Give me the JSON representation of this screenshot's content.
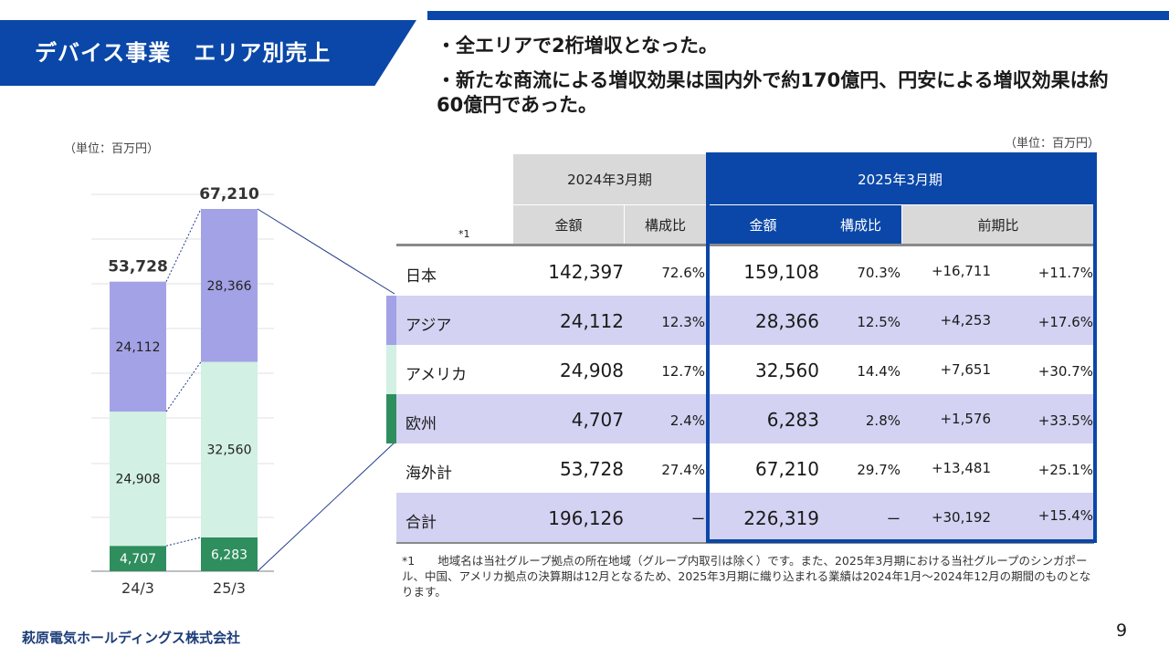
{
  "slide": {
    "title": "デバイス事業　エリア別売上",
    "bullets": [
      "・全エリアで2桁増収となった。",
      "・新たな商流による増収効果は国内外で約170億円、円安による増収効果は約",
      "60億円であった。"
    ],
    "unit_left": "（単位：百万円）",
    "unit_right": "（単位：百万円）",
    "footnote": "*1　　地域名は当社グループ拠点の所在地域（グループ内取引は除く）です。また、2025年3月期における当社グループのシンガポール、中国、アメリカ拠点の決算期は12月となるため、2025年3月期に織り込まれる業績は2024年1月～2024年12月の期間のものとなります。",
    "logo": "萩原電気ホールディングス株式会社",
    "page_number": "9"
  },
  "colors": {
    "brand_blue": "#0a47a8",
    "asia": "#a3a2e6",
    "america": "#d2f0e3",
    "europe": "#2f8e5e",
    "lavender_row": "#d3d2f2"
  },
  "chart_data": {
    "type": "bar",
    "stacked": true,
    "categories": [
      "24/3",
      "25/3"
    ],
    "series": [
      {
        "name": "欧州",
        "values": [
          4707,
          6283
        ]
      },
      {
        "name": "アメリカ",
        "values": [
          24908,
          32560
        ]
      },
      {
        "name": "アジア",
        "values": [
          24112,
          28366
        ]
      }
    ],
    "totals": [
      53728,
      67210
    ],
    "total_labels": [
      "53,728",
      "67,210"
    ],
    "value_labels": [
      [
        "4,707",
        "24,908",
        "24,112"
      ],
      [
        "6,283",
        "32,560",
        "28,366"
      ]
    ],
    "grid": true
  },
  "table": {
    "header_2024": "2024年3月期",
    "header_2025": "2025年3月期",
    "sub_amount_2024": "金額",
    "sub_ratio_2024": "構成比",
    "sub_amount_2025": "金額",
    "sub_ratio_2025": "構成比",
    "sub_yoy": "前期比",
    "note_mark": "*1",
    "rows": [
      {
        "name": "日本",
        "v2024": "142,397",
        "r2024": "72.6%",
        "v2025": "159,108",
        "r2025": "70.3%",
        "diff": "+16,711",
        "pct": "+11.7%"
      },
      {
        "name": "アジア",
        "v2024": "24,112",
        "r2024": "12.3%",
        "v2025": "28,366",
        "r2025": "12.5%",
        "diff": "+4,253",
        "pct": "+17.6%"
      },
      {
        "name": "アメリカ",
        "v2024": "24,908",
        "r2024": "12.7%",
        "v2025": "32,560",
        "r2025": "14.4%",
        "diff": "+7,651",
        "pct": "+30.7%"
      },
      {
        "name": "欧州",
        "v2024": "4,707",
        "r2024": "2.4%",
        "v2025": "6,283",
        "r2025": "2.8%",
        "diff": "+1,576",
        "pct": "+33.5%"
      },
      {
        "name": "海外計",
        "v2024": "53,728",
        "r2024": "27.4%",
        "v2025": "67,210",
        "r2025": "29.7%",
        "diff": "+13,481",
        "pct": "+25.1%"
      },
      {
        "name": "合計",
        "v2024": "196,126",
        "r2024": "ー",
        "v2025": "226,319",
        "r2025": "ー",
        "diff": "+30,192",
        "pct": "+15.4%"
      }
    ]
  }
}
